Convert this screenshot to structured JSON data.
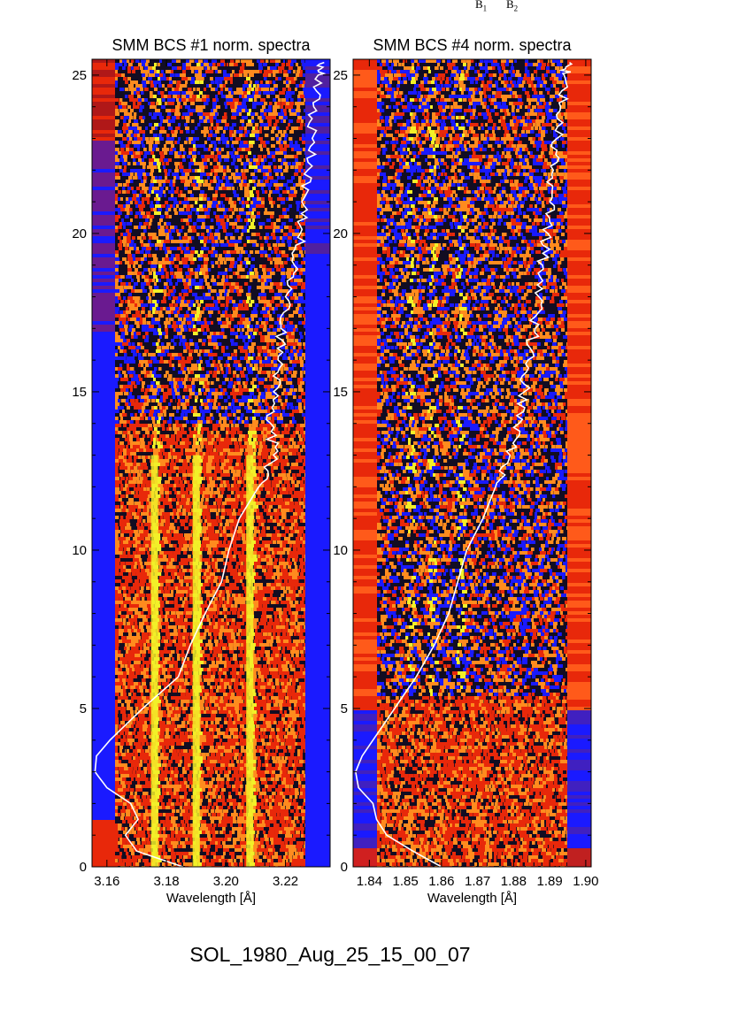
{
  "top_labels": [
    {
      "text": "B",
      "sub": "1"
    },
    {
      "text": "B",
      "sub": "2"
    }
  ],
  "footer": {
    "title": "SOL_1980_Aug_25_15_00_07"
  },
  "colors": {
    "blue": "#1a1aff",
    "dark": "#120d22",
    "red": "#e8280a",
    "orange": "#ff8b1e",
    "yellow": "#f2f028",
    "curve": "#ffffff"
  },
  "chart_data": [
    {
      "type": "heatmap",
      "title": "SMM BCS #1 norm. spectra",
      "xlabel": "Wavelength [Å]",
      "ylabel": "",
      "xlim": [
        3.155,
        3.235
      ],
      "ylim": [
        0,
        25.5
      ],
      "x_ticks": [
        "3.16",
        "3.18",
        "3.20",
        "3.22"
      ],
      "y_ticks": [
        "0",
        "5",
        "10",
        "15",
        "20",
        "25"
      ],
      "line_positions": [
        3.176,
        3.19,
        3.208
      ],
      "lightcurve": {
        "series_color": "white",
        "y": [
          0,
          0.5,
          1.0,
          1.5,
          2.0,
          2.5,
          3.0,
          3.5,
          4.0,
          5.0,
          6.0,
          7.0,
          8.0,
          9.0,
          10.0,
          11.0,
          12.0,
          13.0,
          14.0,
          15.0,
          16.0,
          17.0,
          18.0,
          19.0,
          20.0,
          21.0,
          22.0,
          23.0,
          24.0,
          25.0,
          25.4
        ],
        "x": [
          3.1855,
          3.17,
          3.1662,
          3.1705,
          3.168,
          3.16,
          3.156,
          3.1565,
          3.161,
          3.172,
          3.184,
          3.188,
          3.193,
          3.1985,
          3.201,
          3.2045,
          3.211,
          3.216,
          3.215,
          3.216,
          3.2175,
          3.2185,
          3.22,
          3.223,
          3.225,
          3.2255,
          3.2275,
          3.229,
          3.2295,
          3.231,
          3.233
        ]
      }
    },
    {
      "type": "heatmap",
      "title": "SMM BCS #4 norm. spectra",
      "xlabel": "Wavelength [Å]",
      "ylabel": "",
      "xlim": [
        1.8355,
        1.9015
      ],
      "ylim": [
        0,
        25.5
      ],
      "x_ticks": [
        "1.84",
        "1.85",
        "1.86",
        "1.87",
        "1.88",
        "1.89",
        "1.90"
      ],
      "y_ticks": [
        "0",
        "5",
        "10",
        "15",
        "20",
        "25"
      ],
      "line_positions": [
        1.851,
        1.857,
        1.865
      ],
      "lightcurve": {
        "series_color": "white",
        "y": [
          0,
          0.5,
          1.0,
          1.5,
          2.0,
          2.5,
          3.0,
          3.5,
          4.0,
          5.0,
          6.0,
          7.0,
          8.0,
          9.0,
          10.0,
          11.0,
          12.0,
          13.0,
          14.0,
          15.0,
          16.0,
          17.0,
          18.0,
          19.0,
          20.0,
          21.0,
          22.0,
          23.0,
          24.0,
          25.0,
          25.4
        ],
        "x": [
          1.86,
          1.852,
          1.8448,
          1.842,
          1.841,
          1.837,
          1.8362,
          1.838,
          1.841,
          1.847,
          1.853,
          1.858,
          1.862,
          1.8645,
          1.867,
          1.8715,
          1.875,
          1.879,
          1.8815,
          1.883,
          1.884,
          1.886,
          1.887,
          1.888,
          1.8895,
          1.89,
          1.891,
          1.892,
          1.893,
          1.894,
          1.8955
        ]
      }
    }
  ]
}
